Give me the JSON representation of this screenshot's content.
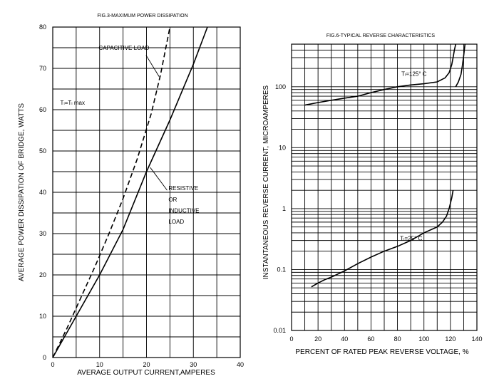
{
  "chart_data": [
    {
      "type": "line",
      "title": "FIG.3-MAXIMUM POWER DISSIPATION",
      "xlabel": "AVERAGE OUTPUT CURRENT,AMPERES",
      "ylabel": "AVERAGE POWER DISSIPATION OF BRIDGE, WATTS",
      "xlim": [
        0,
        40
      ],
      "ylim": [
        0,
        80
      ],
      "x_ticks": [
        "0",
        "10",
        "20",
        "30",
        "40"
      ],
      "y_ticks": [
        "0",
        "10",
        "20",
        "30",
        "40",
        "50",
        "60",
        "70",
        "80"
      ],
      "grid": true,
      "annotations": [
        {
          "text": "CAPACITIVE LOAD",
          "x": 9.8,
          "y": 74.5
        },
        {
          "text": "Tₗ=Tₗ max",
          "x": 1.6,
          "y": 61.2
        },
        {
          "text": "RESISTIVE",
          "x": 24.7,
          "y": 40.5
        },
        {
          "text": "OR",
          "x": 24.7,
          "y": 37.8
        },
        {
          "text": "INDUCTIVE",
          "x": 24.7,
          "y": 35.1
        },
        {
          "text": "LOAD",
          "x": 24.7,
          "y": 32.4
        }
      ],
      "series": [
        {
          "name": "CAPACITIVE LOAD",
          "style": "dashed",
          "x": [
            0,
            3,
            6,
            9,
            12,
            15,
            18,
            21,
            23,
            25
          ],
          "y": [
            0,
            7,
            14.5,
            22,
            30,
            38.5,
            48,
            59,
            68.5,
            80
          ]
        },
        {
          "name": "RESISTIVE OR INDUCTIVE LOAD",
          "style": "solid",
          "x": [
            0,
            5,
            10,
            15,
            20,
            25,
            30,
            33
          ],
          "y": [
            0,
            10,
            20,
            31,
            45,
            57.5,
            71,
            80
          ]
        }
      ]
    },
    {
      "type": "line",
      "title": "FIG.6-TYPICAL REVERSE CHARACTERISTICS",
      "xlabel": "PERCENT OF RATED PEAK REVERSE VOLTAGE, %",
      "ylabel": "INSTANTANEOUS REVERSE CURRENT, MICROAMPERES",
      "xlim": [
        0,
        140
      ],
      "ylim": [
        0.01,
        500
      ],
      "yscale": "log",
      "x_ticks": [
        "0",
        "20",
        "40",
        "60",
        "80",
        "100",
        "120",
        "140"
      ],
      "y_ticks": [
        "0.01",
        "0.1",
        "1",
        "10",
        "100"
      ],
      "grid": true,
      "annotations": [
        {
          "text": "Tₗ=125° C",
          "x": 83,
          "y": 150
        },
        {
          "text": "Tₗ=25° C",
          "x": 82,
          "y": 0.3
        }
      ],
      "series": [
        {
          "name": "Tₗ=125° C",
          "style": "solid",
          "x": [
            10,
            20,
            30,
            40,
            50,
            60,
            70,
            80,
            90,
            100,
            110,
            116,
            119,
            121,
            122,
            123,
            124
          ],
          "y": [
            50,
            55,
            60,
            65,
            70,
            80,
            90,
            100,
            107,
            112,
            120,
            140,
            170,
            230,
            300,
            400,
            500
          ]
        },
        {
          "name": "Tₗ=25° C",
          "style": "solid",
          "x": [
            15,
            20,
            25,
            30,
            40,
            50,
            60,
            70,
            80,
            90,
            100,
            110,
            114,
            117,
            119,
            121,
            122
          ],
          "y": [
            0.052,
            0.06,
            0.068,
            0.075,
            0.095,
            0.125,
            0.16,
            0.2,
            0.24,
            0.3,
            0.4,
            0.5,
            0.6,
            0.75,
            1.0,
            1.5,
            2.0
          ]
        },
        {
          "name": "",
          "style": "solid",
          "x": [
            124,
            126,
            128,
            129,
            130,
            131
          ],
          "y": [
            100,
            120,
            160,
            220,
            320,
            500
          ]
        }
      ]
    }
  ]
}
